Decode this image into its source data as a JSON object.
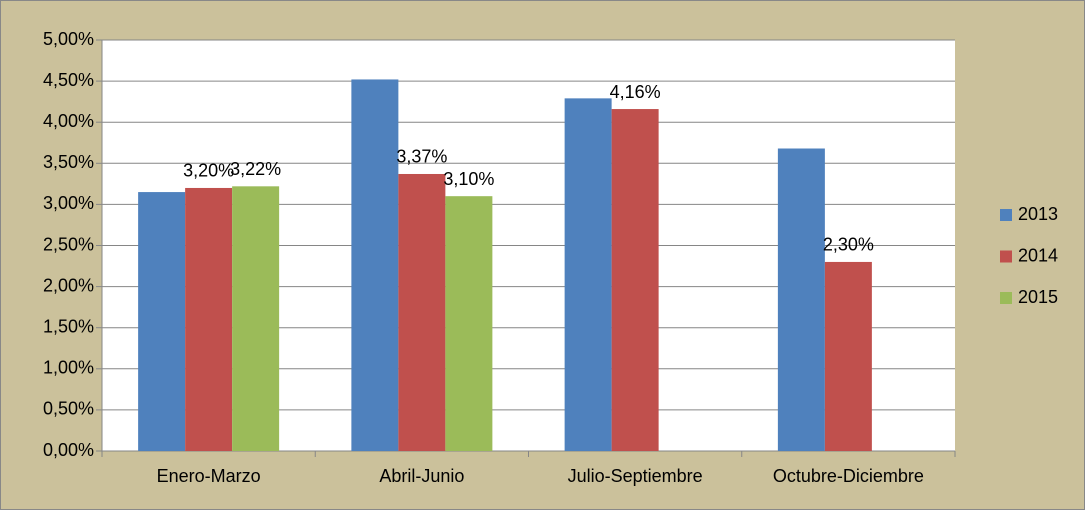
{
  "chart_data": {
    "type": "bar",
    "categories": [
      "Enero-Marzo",
      "Abril-Junio",
      "Julio-Septiembre",
      "Octubre-Diciembre"
    ],
    "series": [
      {
        "name": "2013",
        "color": "#4f81bd",
        "values": [
          3.15,
          4.52,
          4.29,
          3.68
        ]
      },
      {
        "name": "2014",
        "color": "#c0504d",
        "values": [
          3.2,
          3.37,
          4.16,
          2.3
        ],
        "value_labels": [
          "3,20%",
          "3,37%",
          "4,16%",
          "2,30%"
        ]
      },
      {
        "name": "2015",
        "color": "#9bbb59",
        "values": [
          3.22,
          3.1,
          null,
          null
        ],
        "value_labels": [
          "3,22%",
          "3,10%",
          null,
          null
        ]
      }
    ],
    "ylim": [
      0,
      5
    ],
    "yticks": [
      {
        "value": 0,
        "label": "0,00%"
      },
      {
        "value": 0.5,
        "label": "0,50%"
      },
      {
        "value": 1,
        "label": "1,00%"
      },
      {
        "value": 1.5,
        "label": "1,50%"
      },
      {
        "value": 2,
        "label": "2,00%"
      },
      {
        "value": 2.5,
        "label": "2,50%"
      },
      {
        "value": 3,
        "label": "3,00%"
      },
      {
        "value": 3.5,
        "label": "3,50%"
      },
      {
        "value": 4,
        "label": "4,00%"
      },
      {
        "value": 4.5,
        "label": "4,50%"
      },
      {
        "value": 5,
        "label": "5,00%"
      }
    ],
    "grid": true,
    "legend": "right"
  }
}
